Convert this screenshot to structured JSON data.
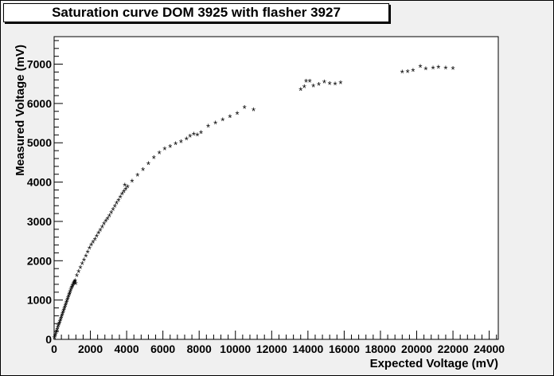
{
  "chart_data": {
    "type": "scatter",
    "title": "Saturation curve DOM 3925 with flasher 3927",
    "xlabel": "Expected Voltage (mV)",
    "ylabel": "Measured Voltage (mV)",
    "xlim": [
      0,
      24500
    ],
    "ylim": [
      0,
      7700
    ],
    "x_ticks": [
      0,
      2000,
      4000,
      6000,
      8000,
      10000,
      12000,
      14000,
      16000,
      18000,
      20000,
      22000,
      24000
    ],
    "x_tick_labels": [
      "0",
      "2000",
      "4000",
      "6000",
      "8000",
      "10000",
      "12000",
      "14000",
      "16000",
      "18000",
      "20000",
      "22000",
      "24000"
    ],
    "y_ticks": [
      0,
      1000,
      2000,
      3000,
      4000,
      5000,
      6000,
      7000
    ],
    "y_tick_labels": [
      "0",
      "1000",
      "2000",
      "3000",
      "4000",
      "5000",
      "6000",
      "7000"
    ],
    "grid": false,
    "marker": "*",
    "points": [
      [
        20,
        20
      ],
      [
        50,
        60
      ],
      [
        80,
        100
      ],
      [
        110,
        150
      ],
      [
        140,
        190
      ],
      [
        170,
        230
      ],
      [
        200,
        280
      ],
      [
        230,
        320
      ],
      [
        260,
        360
      ],
      [
        290,
        400
      ],
      [
        320,
        440
      ],
      [
        350,
        480
      ],
      [
        380,
        520
      ],
      [
        410,
        560
      ],
      [
        440,
        600
      ],
      [
        470,
        640
      ],
      [
        500,
        680
      ],
      [
        530,
        720
      ],
      [
        560,
        760
      ],
      [
        590,
        800
      ],
      [
        620,
        840
      ],
      [
        650,
        880
      ],
      [
        680,
        920
      ],
      [
        710,
        960
      ],
      [
        740,
        1000
      ],
      [
        770,
        1040
      ],
      [
        800,
        1080
      ],
      [
        830,
        1120
      ],
      [
        860,
        1160
      ],
      [
        890,
        1200
      ],
      [
        920,
        1240
      ],
      [
        950,
        1280
      ],
      [
        980,
        1310
      ],
      [
        1010,
        1340
      ],
      [
        1040,
        1370
      ],
      [
        1070,
        1400
      ],
      [
        1100,
        1420
      ],
      [
        1130,
        1450
      ],
      [
        1160,
        1470
      ],
      [
        1190,
        1400
      ],
      [
        1250,
        1600
      ],
      [
        1350,
        1700
      ],
      [
        1450,
        1800
      ],
      [
        1550,
        1900
      ],
      [
        1650,
        2000
      ],
      [
        1750,
        2100
      ],
      [
        1850,
        2200
      ],
      [
        1950,
        2300
      ],
      [
        2050,
        2380
      ],
      [
        2150,
        2450
      ],
      [
        2250,
        2520
      ],
      [
        2350,
        2600
      ],
      [
        2450,
        2680
      ],
      [
        2550,
        2760
      ],
      [
        2650,
        2840
      ],
      [
        2750,
        2920
      ],
      [
        2850,
        2990
      ],
      [
        2950,
        3050
      ],
      [
        3050,
        3120
      ],
      [
        3150,
        3200
      ],
      [
        3250,
        3280
      ],
      [
        3350,
        3360
      ],
      [
        3450,
        3440
      ],
      [
        3550,
        3520
      ],
      [
        3650,
        3600
      ],
      [
        3750,
        3680
      ],
      [
        3850,
        3740
      ],
      [
        3950,
        3800
      ],
      [
        4050,
        3860
      ],
      [
        3900,
        3900
      ],
      [
        4300,
        4000
      ],
      [
        4600,
        4150
      ],
      [
        4900,
        4300
      ],
      [
        5200,
        4450
      ],
      [
        5500,
        4600
      ],
      [
        5800,
        4720
      ],
      [
        6100,
        4820
      ],
      [
        6400,
        4880
      ],
      [
        6700,
        4950
      ],
      [
        7000,
        5000
      ],
      [
        7300,
        5080
      ],
      [
        7500,
        5150
      ],
      [
        7700,
        5200
      ],
      [
        7900,
        5180
      ],
      [
        8100,
        5240
      ],
      [
        8500,
        5400
      ],
      [
        8900,
        5480
      ],
      [
        9300,
        5560
      ],
      [
        9700,
        5640
      ],
      [
        10100,
        5720
      ],
      [
        10500,
        5880
      ],
      [
        11000,
        5820
      ],
      [
        13600,
        6330
      ],
      [
        13800,
        6400
      ],
      [
        13900,
        6550
      ],
      [
        14100,
        6540
      ],
      [
        14300,
        6420
      ],
      [
        14600,
        6460
      ],
      [
        14900,
        6520
      ],
      [
        15200,
        6480
      ],
      [
        15500,
        6470
      ],
      [
        15800,
        6500
      ],
      [
        19200,
        6780
      ],
      [
        19500,
        6790
      ],
      [
        19800,
        6820
      ],
      [
        20200,
        6920
      ],
      [
        20500,
        6860
      ],
      [
        20900,
        6880
      ],
      [
        21200,
        6900
      ],
      [
        21600,
        6880
      ],
      [
        22000,
        6870
      ]
    ]
  }
}
